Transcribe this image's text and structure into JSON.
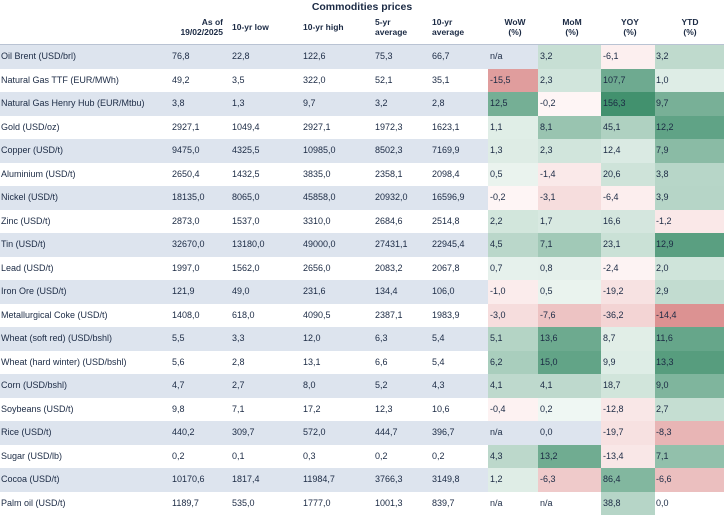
{
  "title": "Commodities prices",
  "headers": {
    "asof": "As of\n19/02/2025",
    "low10": "10-yr low",
    "high10": "10-yr high",
    "avg5": "5-yr\naverage",
    "avg10": "10-yr\naverage",
    "wow": "WoW\n(%)",
    "mom": "MoM\n(%)",
    "yoy": "YOY\n(%)",
    "ytd": "YTD\n(%)"
  },
  "colors": {
    "row_shade": "#dde4ee",
    "negative_strong": "#d98a8a",
    "negative_light": "#f4dede",
    "positive_strong": "#3f8f6c",
    "positive_light": "#d8ebe2"
  },
  "rows": [
    {
      "name": "Oil Brent (USD/brl)",
      "asof": "76,8",
      "low10": "22,8",
      "high10": "122,6",
      "avg5": "75,3",
      "avg10": "66,7",
      "wow": "n/a",
      "mom": "3,2",
      "yoy": "-6,1",
      "ytd": "3,2"
    },
    {
      "name": "Natural Gas TTF (EUR/MWh)",
      "asof": "49,2",
      "low10": "3,5",
      "high10": "322,0",
      "avg5": "52,1",
      "avg10": "35,1",
      "wow": "-15,5",
      "mom": "2,3",
      "yoy": "107,7",
      "ytd": "1,0"
    },
    {
      "name": "Natural Gas Henry Hub (EUR/Mtbu)",
      "asof": "3,8",
      "low10": "1,3",
      "high10": "9,7",
      "avg5": "3,2",
      "avg10": "2,8",
      "wow": "12,5",
      "mom": "-0,2",
      "yoy": "156,3",
      "ytd": "9,7"
    },
    {
      "name": "Gold (USD/oz)",
      "asof": "2927,1",
      "low10": "1049,4",
      "high10": "2927,1",
      "avg5": "1972,3",
      "avg10": "1623,1",
      "wow": "1,1",
      "mom": "8,1",
      "yoy": "45,1",
      "ytd": "12,2"
    },
    {
      "name": "Copper (USD/t)",
      "asof": "9475,0",
      "low10": "4325,5",
      "high10": "10985,0",
      "avg5": "8502,3",
      "avg10": "7169,9",
      "wow": "1,3",
      "mom": "2,3",
      "yoy": "12,4",
      "ytd": "7,9"
    },
    {
      "name": "Aluminium (USD/t)",
      "asof": "2650,4",
      "low10": "1432,5",
      "high10": "3835,0",
      "avg5": "2358,1",
      "avg10": "2098,4",
      "wow": "0,5",
      "mom": "-1,4",
      "yoy": "20,6",
      "ytd": "3,8"
    },
    {
      "name": "Nickel (USD/t)",
      "asof": "18135,0",
      "low10": "8065,0",
      "high10": "45858,0",
      "avg5": "20932,0",
      "avg10": "16596,9",
      "wow": "-0,2",
      "mom": "-3,1",
      "yoy": "-6,4",
      "ytd": "3,9"
    },
    {
      "name": "Zinc (USD/t)",
      "asof": "2873,0",
      "low10": "1537,0",
      "high10": "3310,0",
      "avg5": "2684,6",
      "avg10": "2514,8",
      "wow": "2,2",
      "mom": "1,7",
      "yoy": "16,6",
      "ytd": "-1,2"
    },
    {
      "name": "Tin (USD/t)",
      "asof": "32670,0",
      "low10": "13180,0",
      "high10": "49000,0",
      "avg5": "27431,1",
      "avg10": "22945,4",
      "wow": "4,5",
      "mom": "7,1",
      "yoy": "23,1",
      "ytd": "12,9"
    },
    {
      "name": "Lead (USD/t)",
      "asof": "1997,0",
      "low10": "1562,0",
      "high10": "2656,0",
      "avg5": "2083,2",
      "avg10": "2067,8",
      "wow": "0,7",
      "mom": "0,8",
      "yoy": "-2,4",
      "ytd": "2,0"
    },
    {
      "name": "Iron Ore (USD/t)",
      "asof": "121,9",
      "low10": "49,0",
      "high10": "231,6",
      "avg5": "134,4",
      "avg10": "106,0",
      "wow": "-1,0",
      "mom": "0,5",
      "yoy": "-19,2",
      "ytd": "2,9"
    },
    {
      "name": "Metallurgical Coke (USD/t)",
      "asof": "1408,0",
      "low10": "618,0",
      "high10": "4090,5",
      "avg5": "2387,1",
      "avg10": "1983,9",
      "wow": "-3,0",
      "mom": "-7,6",
      "yoy": "-36,2",
      "ytd": "-14,4"
    },
    {
      "name": "Wheat (soft red) (USD/bshl)",
      "asof": "5,5",
      "low10": "3,3",
      "high10": "12,0",
      "avg5": "6,3",
      "avg10": "5,4",
      "wow": "5,1",
      "mom": "13,6",
      "yoy": "8,7",
      "ytd": "11,6"
    },
    {
      "name": "Wheat (hard winter) (USD/bshl)",
      "asof": "5,6",
      "low10": "2,8",
      "high10": "13,1",
      "avg5": "6,6",
      "avg10": "5,4",
      "wow": "6,2",
      "mom": "15,0",
      "yoy": "9,9",
      "ytd": "13,3"
    },
    {
      "name": "Corn (USD/bshl)",
      "asof": "4,7",
      "low10": "2,7",
      "high10": "8,0",
      "avg5": "5,2",
      "avg10": "4,3",
      "wow": "4,1",
      "mom": "4,1",
      "yoy": "18,7",
      "ytd": "9,0"
    },
    {
      "name": "Soybeans (USD/t)",
      "asof": "9,8",
      "low10": "7,1",
      "high10": "17,2",
      "avg5": "12,3",
      "avg10": "10,6",
      "wow": "-0,4",
      "mom": "0,2",
      "yoy": "-12,8",
      "ytd": "2,7"
    },
    {
      "name": "Rice (USD/t)",
      "asof": "440,2",
      "low10": "309,7",
      "high10": "572,0",
      "avg5": "444,7",
      "avg10": "396,7",
      "wow": "n/a",
      "mom": "0,0",
      "yoy": "-19,7",
      "ytd": "-8,3"
    },
    {
      "name": "Sugar (USD/lb)",
      "asof": "0,2",
      "low10": "0,1",
      "high10": "0,3",
      "avg5": "0,2",
      "avg10": "0,2",
      "wow": "4,3",
      "mom": "13,2",
      "yoy": "-13,4",
      "ytd": "7,1"
    },
    {
      "name": "Cocoa (USD/t)",
      "asof": "10170,6",
      "low10": "1817,4",
      "high10": "11984,7",
      "avg5": "3766,3",
      "avg10": "3149,8",
      "wow": "1,2",
      "mom": "-6,3",
      "yoy": "86,4",
      "ytd": "-6,6"
    },
    {
      "name": "Palm oil (USD/t)",
      "asof": "1189,7",
      "low10": "535,0",
      "high10": "1777,0",
      "avg5": "1001,3",
      "avg10": "839,7",
      "wow": "n/a",
      "mom": "n/a",
      "yoy": "38,8",
      "ytd": "0,0"
    }
  ]
}
